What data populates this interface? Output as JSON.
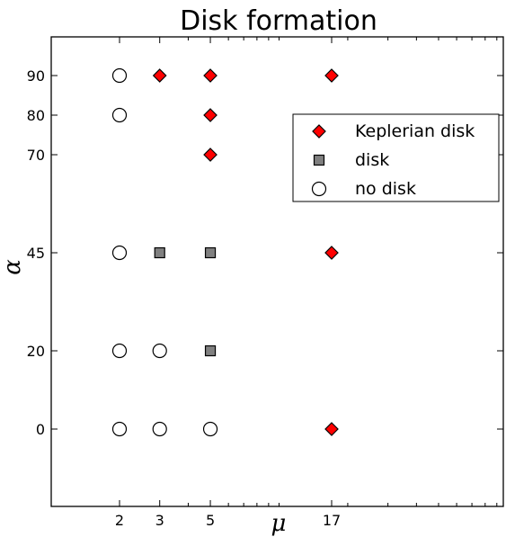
{
  "chart_data": {
    "type": "scatter",
    "title": "Disk formation",
    "xlabel": "μ",
    "ylabel": "α",
    "x_ticks": [
      2,
      3,
      5,
      17
    ],
    "y_ticks": [
      0,
      20,
      45,
      70,
      80,
      90
    ],
    "x_scale": "log",
    "y_scale": "nonlinear (tick spacing as printed)",
    "grid": false,
    "legend_position": "upper-right",
    "series": [
      {
        "name": "Keplerian disk",
        "marker": "diamond",
        "color": "#ff0000",
        "points": [
          {
            "x": 3,
            "y": 90
          },
          {
            "x": 5,
            "y": 90
          },
          {
            "x": 17,
            "y": 90
          },
          {
            "x": 5,
            "y": 80
          },
          {
            "x": 5,
            "y": 70
          },
          {
            "x": 17,
            "y": 45
          },
          {
            "x": 17,
            "y": 0
          }
        ]
      },
      {
        "name": "disk",
        "marker": "square",
        "color": "#808080",
        "points": [
          {
            "x": 3,
            "y": 45
          },
          {
            "x": 5,
            "y": 45
          },
          {
            "x": 5,
            "y": 20
          }
        ]
      },
      {
        "name": "no disk",
        "marker": "circle-open",
        "color": "#ffffff",
        "points": [
          {
            "x": 2,
            "y": 90
          },
          {
            "x": 2,
            "y": 80
          },
          {
            "x": 2,
            "y": 45
          },
          {
            "x": 2,
            "y": 20
          },
          {
            "x": 3,
            "y": 20
          },
          {
            "x": 2,
            "y": 0
          },
          {
            "x": 3,
            "y": 0
          },
          {
            "x": 5,
            "y": 0
          }
        ]
      }
    ]
  }
}
